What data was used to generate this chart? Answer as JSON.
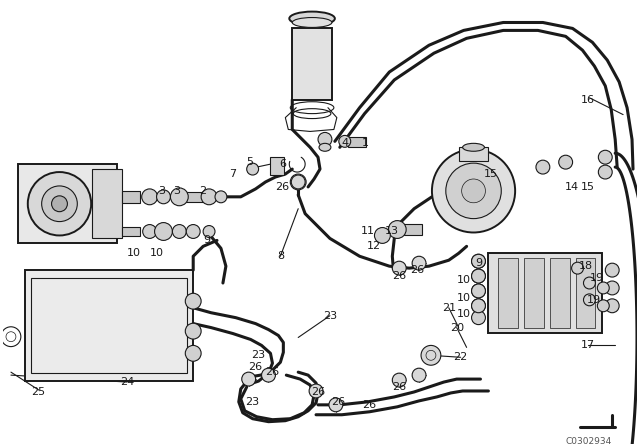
{
  "bg_color": "#ffffff",
  "line_color": "#1a1a1a",
  "fig_width": 6.4,
  "fig_height": 4.48,
  "dpi": 100,
  "catalog_number": "C0302934"
}
